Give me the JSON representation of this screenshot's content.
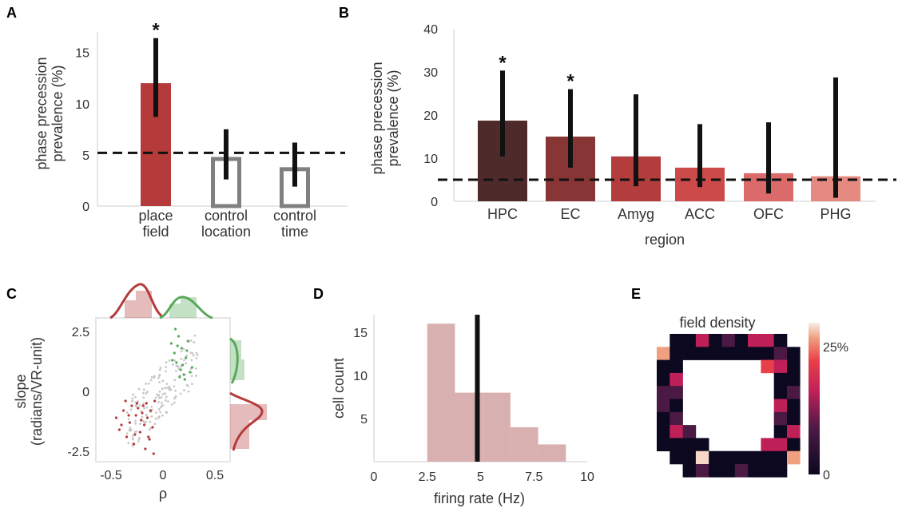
{
  "panels": {
    "A": {
      "letter": "A",
      "ylabel_line1": "phase precession",
      "ylabel_line2": "prevalence (%)",
      "yticks": [
        "0",
        "5",
        "10",
        "15"
      ],
      "star": "*",
      "chance": 5.2
    },
    "B": {
      "letter": "B",
      "ylabel_line1": "phase precession",
      "ylabel_line2": "prevalence (%)",
      "xlabel": "region",
      "yticks": [
        "0",
        "10",
        "20",
        "30",
        "40"
      ],
      "star": "*",
      "chance": 5.0
    },
    "C": {
      "letter": "C",
      "ylabel_line1": "slope",
      "ylabel_line2": "(radians/VR-unit)",
      "xlabel": "ρ",
      "yticks": [
        "2.5",
        "0",
        "-2.5"
      ],
      "xticks": [
        "-0.5",
        "0",
        "0.5"
      ]
    },
    "D": {
      "letter": "D",
      "ylabel": "cell count",
      "xlabel": "firing rate (Hz)",
      "yticks": [
        "5",
        "10",
        "15"
      ],
      "xticks": [
        "0",
        "2.5",
        "5",
        "7.5",
        "10"
      ]
    },
    "E": {
      "letter": "E",
      "title": "field density",
      "cbar_top": "25%",
      "cbar_bottom": "0"
    }
  },
  "colors": {
    "place_red": "#b53b3b",
    "control_gray": "#808080",
    "green": "#5aa85a",
    "hist_pink": "#d9b0b0"
  },
  "chart_data": [
    {
      "panel": "A",
      "type": "bar",
      "categories": [
        "place\nfield",
        "control\nlocation",
        "control\ntime"
      ],
      "values": [
        12.0,
        4.6,
        3.6
      ],
      "err_low": [
        8.7,
        2.6,
        1.9
      ],
      "err_high": [
        16.4,
        7.5,
        6.2
      ],
      "significant": [
        true,
        false,
        false
      ],
      "fill": [
        "filled",
        "open",
        "open"
      ],
      "ylim": [
        0,
        17
      ],
      "chance_line": 5.2
    },
    {
      "panel": "B",
      "type": "bar",
      "categories": [
        "HPC",
        "EC",
        "Amyg",
        "ACC",
        "OFC",
        "PHG"
      ],
      "values": [
        18.7,
        15.0,
        10.4,
        7.8,
        6.5,
        5.8
      ],
      "err_low": [
        10.4,
        7.8,
        3.5,
        3.3,
        1.8,
        0.8
      ],
      "err_high": [
        30.3,
        26.0,
        24.8,
        17.9,
        18.3,
        28.7
      ],
      "significant": [
        true,
        true,
        false,
        false,
        false,
        false
      ],
      "bar_colors": [
        "#4e2a2a",
        "#883535",
        "#b33d3d",
        "#cc4a4a",
        "#db6a6a",
        "#e58a80"
      ],
      "xlabel": "region",
      "ylim": [
        0,
        40
      ],
      "chance_line": 5.0
    },
    {
      "panel": "C",
      "type": "scatter",
      "xlabel": "ρ",
      "ylabel": "slope (radians/VR-unit)",
      "xlim": [
        -0.62,
        0.62
      ],
      "ylim": [
        -3.3,
        3.3
      ],
      "series": [
        {
          "color": "#b53b3b",
          "points": [
            [
              -0.45,
              -1.1
            ],
            [
              -0.42,
              -1.6
            ],
            [
              -0.38,
              -0.8
            ],
            [
              -0.35,
              -1.9
            ],
            [
              -0.32,
              -1.3
            ],
            [
              -0.3,
              -0.6
            ],
            [
              -0.28,
              -2.2
            ],
            [
              -0.26,
              -1.0
            ],
            [
              -0.24,
              -0.7
            ],
            [
              -0.22,
              -1.7
            ],
            [
              -0.2,
              -0.9
            ],
            [
              -0.18,
              -1.4
            ],
            [
              -0.17,
              -2.4
            ],
            [
              -0.16,
              -0.5
            ],
            [
              -0.15,
              -1.1
            ],
            [
              -0.13,
              -2.0
            ],
            [
              -0.12,
              -0.8
            ],
            [
              -0.1,
              -1.5
            ],
            [
              -0.09,
              -2.6
            ],
            [
              -0.08,
              -0.4
            ],
            [
              -0.25,
              -0.5
            ],
            [
              -0.33,
              -1.0
            ],
            [
              -0.4,
              -1.4
            ],
            [
              -0.19,
              -0.6
            ],
            [
              -0.27,
              -1.8
            ],
            [
              -0.14,
              -1.9
            ],
            [
              -0.36,
              -0.4
            ],
            [
              -0.21,
              -1.2
            ]
          ]
        },
        {
          "color": "#5aa85a",
          "points": [
            [
              0.08,
              2.0
            ],
            [
              0.11,
              1.6
            ],
            [
              0.13,
              1.2
            ],
            [
              0.15,
              2.3
            ],
            [
              0.17,
              0.9
            ],
            [
              0.18,
              1.8
            ],
            [
              0.2,
              0.7
            ],
            [
              0.22,
              1.4
            ],
            [
              0.24,
              2.1
            ],
            [
              0.26,
              0.8
            ],
            [
              0.12,
              2.6
            ],
            [
              0.19,
              1.1
            ],
            [
              0.16,
              0.6
            ],
            [
              0.23,
              1.7
            ],
            [
              0.28,
              1.0
            ],
            [
              0.14,
              1.9
            ],
            [
              0.21,
              0.5
            ],
            [
              0.09,
              1.3
            ]
          ]
        }
      ]
    },
    {
      "panel": "D",
      "type": "histogram",
      "bin_edges": [
        2.5,
        3.8,
        5.1,
        6.4,
        7.7,
        9.0
      ],
      "counts": [
        16,
        8,
        8,
        4,
        2
      ],
      "marker_line": 4.85,
      "xlabel": "firing rate (Hz)",
      "ylabel": "cell count",
      "xlim": [
        0,
        10
      ],
      "ylim": [
        0,
        17
      ]
    },
    {
      "panel": "E",
      "type": "heatmap",
      "title": "field density",
      "grid": [
        [
          -1,
          0,
          0,
          2,
          0,
          1,
          0,
          2,
          2,
          0,
          -1
        ],
        [
          4,
          0,
          0,
          0,
          0,
          0,
          0,
          0,
          0,
          1,
          0
        ],
        [
          0,
          0,
          -1,
          -1,
          -1,
          -1,
          -1,
          -1,
          3,
          2,
          0
        ],
        [
          0,
          2,
          -1,
          -1,
          -1,
          -1,
          -1,
          -1,
          -1,
          0,
          0
        ],
        [
          1,
          1,
          -1,
          -1,
          -1,
          -1,
          -1,
          -1,
          -1,
          0,
          1
        ],
        [
          1,
          0,
          -1,
          -1,
          -1,
          -1,
          -1,
          -1,
          -1,
          2,
          0
        ],
        [
          0,
          1,
          -1,
          -1,
          -1,
          -1,
          -1,
          -1,
          -1,
          1,
          0
        ],
        [
          0,
          2,
          1,
          -1,
          -1,
          -1,
          -1,
          -1,
          -1,
          0,
          2
        ],
        [
          0,
          0,
          0,
          0,
          -1,
          -1,
          -1,
          -1,
          2,
          2,
          0
        ],
        [
          -1,
          0,
          0,
          5,
          0,
          0,
          0,
          0,
          0,
          0,
          4
        ],
        [
          -1,
          -1,
          0,
          1,
          0,
          0,
          1,
          0,
          0,
          0,
          -1
        ]
      ],
      "palette": [
        "#0c0820",
        "#4a1a45",
        "#c02058",
        "#e8404a",
        "#f0a080",
        "#f7d8c8"
      ],
      "colorbar_range": [
        "0",
        "25%"
      ]
    }
  ]
}
